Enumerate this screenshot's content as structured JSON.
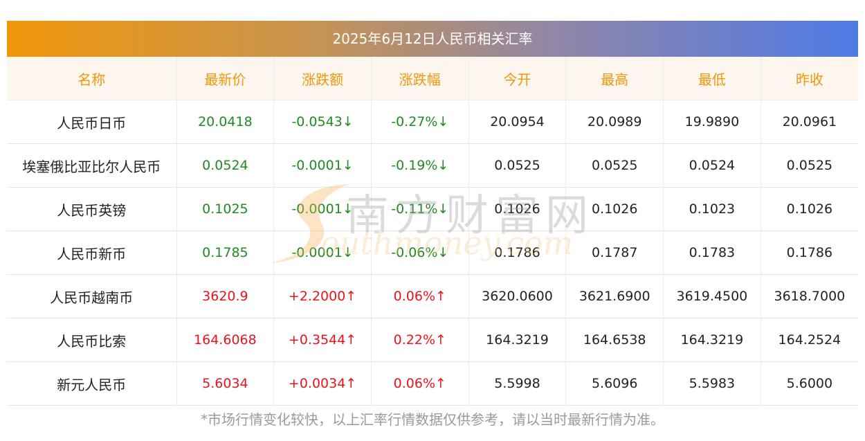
{
  "title": "2025年6月12日人民币相关汇率",
  "headers": [
    "名称",
    "最新价",
    "涨跌额",
    "涨跌幅",
    "今开",
    "最高",
    "最低",
    "昨收"
  ],
  "rows": [
    {
      "name": "人民币日币",
      "latest": "20.0418",
      "change": "-0.0543↓",
      "pct": "-0.27%↓",
      "open": "20.0954",
      "high": "20.0989",
      "low": "19.9890",
      "prev": "20.0961",
      "trend": "down"
    },
    {
      "name": "埃塞俄比亚比尔人民币",
      "latest": "0.0524",
      "change": "-0.0001↓",
      "pct": "-0.19%↓",
      "open": "0.0525",
      "high": "0.0525",
      "low": "0.0524",
      "prev": "0.0525",
      "trend": "down"
    },
    {
      "name": "人民币英镑",
      "latest": "0.1025",
      "change": "-0.0001↓",
      "pct": "-0.11%↓",
      "open": "0.1026",
      "high": "0.1026",
      "low": "0.1023",
      "prev": "0.1026",
      "trend": "down"
    },
    {
      "name": "人民币新币",
      "latest": "0.1785",
      "change": "-0.0001↓",
      "pct": "-0.06%↓",
      "open": "0.1786",
      "high": "0.1787",
      "low": "0.1783",
      "prev": "0.1786",
      "trend": "down"
    },
    {
      "name": "人民币越南币",
      "latest": "3620.9",
      "change": "+2.2000↑",
      "pct": "0.06%↑",
      "open": "3620.0600",
      "high": "3621.6900",
      "low": "3619.4500",
      "prev": "3618.7000",
      "trend": "up"
    },
    {
      "name": "人民币比索",
      "latest": "164.6068",
      "change": "+0.3544↑",
      "pct": "0.22%↑",
      "open": "164.3219",
      "high": "164.6538",
      "low": "164.3219",
      "prev": "164.2524",
      "trend": "up"
    },
    {
      "name": "新元人民币",
      "latest": "5.6034",
      "change": "+0.0034↑",
      "pct": "0.06%↑",
      "open": "5.5998",
      "high": "5.6096",
      "low": "5.5983",
      "prev": "5.6000",
      "trend": "up"
    }
  ],
  "watermark": {
    "cn": "南方财富网",
    "en": "outhmoney.com"
  },
  "footnote": "*市场行情变化较快，以上汇率行情数据仅供参考，请以当时最新行情为准。",
  "colors": {
    "accent": "#f0960a",
    "down": "#1f8a1f",
    "up": "#e8141c"
  }
}
